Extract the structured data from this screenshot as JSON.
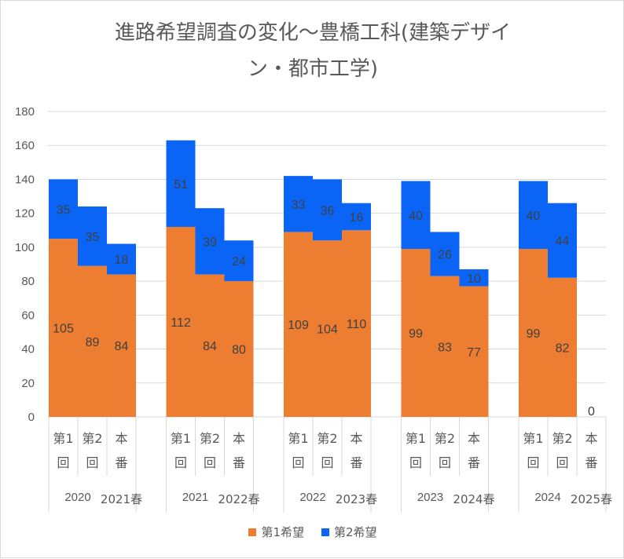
{
  "chart_data": {
    "type": "bar",
    "stacked": true,
    "title_line1": "進路希望調査の変化～豊橋工科(建築デザイ",
    "title_line2": "ン・都市工学)",
    "ylim": [
      0,
      180
    ],
    "yticks": [
      "0",
      "20",
      "40",
      "60",
      "80",
      "100",
      "120",
      "140",
      "160",
      "180"
    ],
    "gridlines": true,
    "groups": [
      {
        "year": "2020",
        "season": "2021春",
        "bars": [
          {
            "label": [
              "第1",
              "回"
            ],
            "first": 105,
            "second": 35
          },
          {
            "label": [
              "第2",
              "回"
            ],
            "first": 89,
            "second": 35
          },
          {
            "label": [
              "本",
              "番"
            ],
            "first": 84,
            "second": 18
          }
        ]
      },
      {
        "year": "2021",
        "season": "2022春",
        "bars": [
          {
            "label": [
              "第1",
              "回"
            ],
            "first": 112,
            "second": 51
          },
          {
            "label": [
              "第2",
              "回"
            ],
            "first": 84,
            "second": 39
          },
          {
            "label": [
              "本",
              "番"
            ],
            "first": 80,
            "second": 24
          }
        ]
      },
      {
        "year": "2022",
        "season": "2023春",
        "bars": [
          {
            "label": [
              "第1",
              "回"
            ],
            "first": 109,
            "second": 33
          },
          {
            "label": [
              "第2",
              "回"
            ],
            "first": 104,
            "second": 36
          },
          {
            "label": [
              "本",
              "番"
            ],
            "first": 110,
            "second": 16
          }
        ]
      },
      {
        "year": "2023",
        "season": "2024春",
        "bars": [
          {
            "label": [
              "第1",
              "回"
            ],
            "first": 99,
            "second": 40
          },
          {
            "label": [
              "第2",
              "回"
            ],
            "first": 83,
            "second": 26
          },
          {
            "label": [
              "本",
              "番"
            ],
            "first": 77,
            "second": 10
          }
        ]
      },
      {
        "year": "2024",
        "season": "2025春",
        "bars": [
          {
            "label": [
              "第1",
              "回"
            ],
            "first": 99,
            "second": 40
          },
          {
            "label": [
              "第2",
              "回"
            ],
            "first": 82,
            "second": 44
          },
          {
            "label": [
              "本",
              "番"
            ],
            "first": 0,
            "second": 0,
            "zero_label": "0"
          }
        ]
      }
    ],
    "series": [
      {
        "name": "第1希望",
        "color": "#ED7D31"
      },
      {
        "name": "第2希望",
        "color": "#0A64F5"
      }
    ]
  },
  "colors": {
    "grid": "#d9d9d9",
    "text": "#595959",
    "label": "#404040"
  }
}
